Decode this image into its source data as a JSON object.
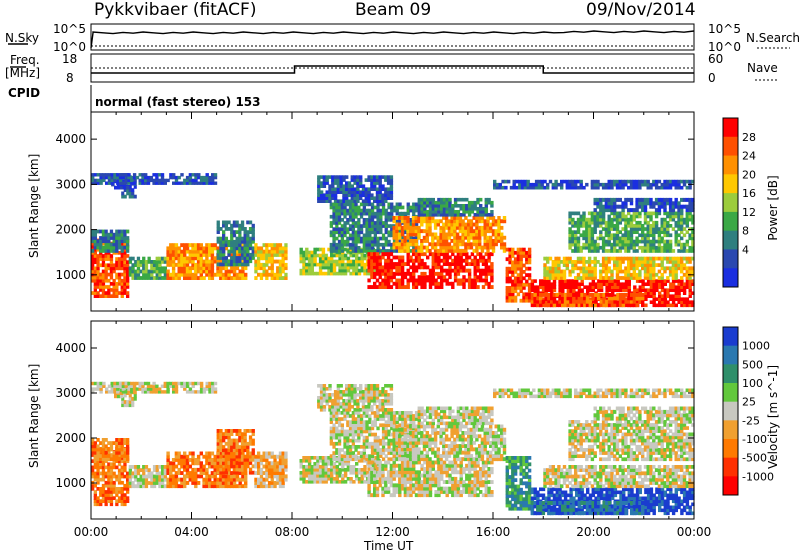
{
  "header": {
    "station": "Pykkvibaer (fitACF)",
    "beam": "Beam 09",
    "date": "09/Nov/2014"
  },
  "panels": {
    "nsky": {
      "label": "N.Sky",
      "tick_top": "10^5",
      "tick_bottom": "10^0",
      "right_label": "N.Search",
      "right_tick_top": "10^5",
      "right_tick_bottom": "10^0"
    },
    "freq": {
      "label_line1": "Freq.",
      "label_line2": "[MHz]",
      "tick_top": "18",
      "tick_bottom": "8",
      "right_label": "Nave",
      "right_tick_top": "60",
      "right_tick_bottom": "0"
    },
    "cpid": {
      "label": "CPID",
      "mode": "normal (fast stereo) 153"
    }
  },
  "chart_data": [
    {
      "type": "heatmap",
      "title": "",
      "xlabel": "Time UT",
      "ylabel": "Slant Range [km]",
      "x_ticks": [
        "00:00",
        "04:00",
        "08:00",
        "12:00",
        "16:00",
        "20:00",
        "00:00"
      ],
      "xlim_hours": [
        0,
        24
      ],
      "ylim": [
        200,
        4600
      ],
      "y_ticks": [
        1000,
        2000,
        3000,
        4000
      ],
      "colorbar": {
        "label": "Power [dB]",
        "ticks": [
          "28",
          "24",
          "20",
          "16",
          "12",
          "8",
          "4"
        ],
        "colors": [
          "#ff0000",
          "#ff5000",
          "#ff9000",
          "#ffc800",
          "#9ccc3c",
          "#3aa845",
          "#2f7f7f",
          "#2a48b0",
          "#1a2ee0"
        ]
      }
    },
    {
      "type": "heatmap",
      "title": "",
      "xlabel": "Time UT",
      "ylabel": "Slant Range [km]",
      "x_ticks": [
        "00:00",
        "04:00",
        "08:00",
        "12:00",
        "16:00",
        "20:00",
        "00:00"
      ],
      "xlim_hours": [
        0,
        24
      ],
      "ylim": [
        200,
        4600
      ],
      "y_ticks": [
        1000,
        2000,
        3000,
        4000
      ],
      "colorbar": {
        "label": "Velocity [m s^-1]",
        "ticks": [
          "1000",
          "500",
          "100",
          "25",
          "-25",
          "-100",
          "-500",
          "-1000"
        ],
        "colors": [
          "#1a3ccf",
          "#2a78b0",
          "#2f8f6a",
          "#62c83c",
          "#c8c8c0",
          "#f0a030",
          "#ff7a00",
          "#ff3000",
          "#ff0000"
        ]
      }
    }
  ],
  "colors": {
    "power_high": "#ff0000",
    "power_mid": "#ff9000",
    "power_low": "#2a48b0",
    "vel_pos": "#1a3ccf",
    "vel_neg": "#ff7a00",
    "ground_scatter": "#c8c8c0"
  }
}
